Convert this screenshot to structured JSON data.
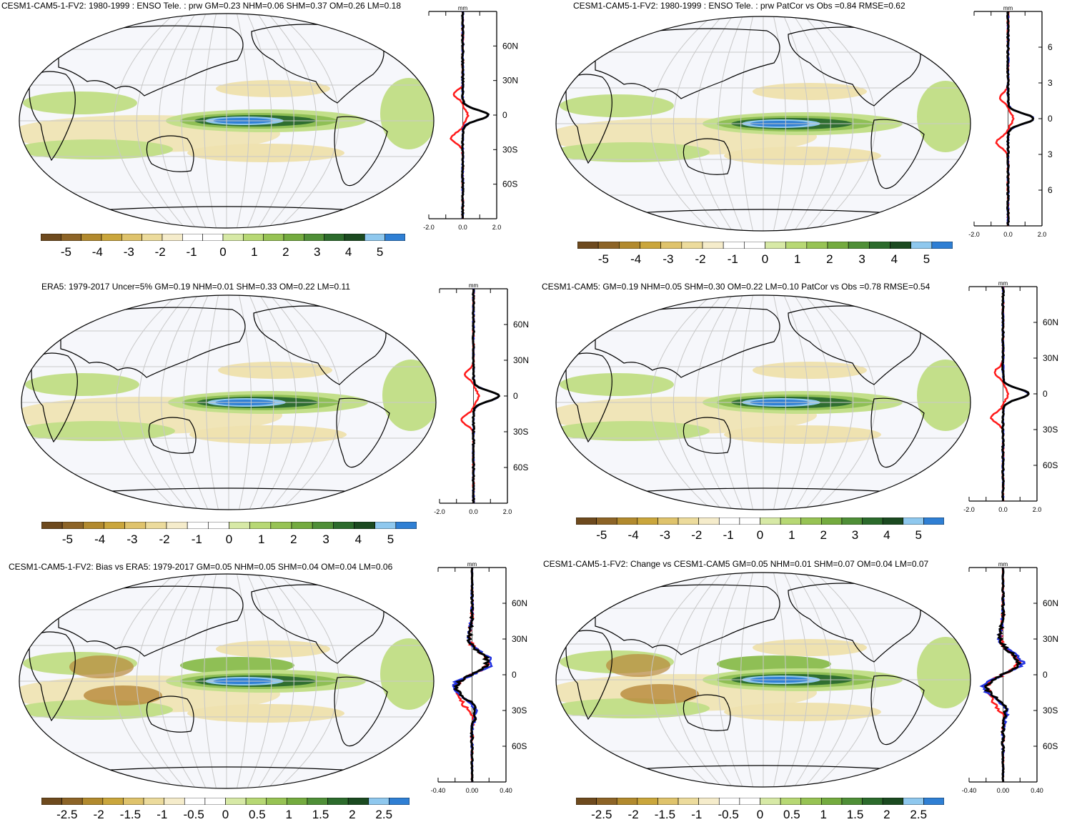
{
  "colors": {
    "ocean": "#f6f7fb",
    "land_outline": "#000000",
    "grid": "#c8c8c8",
    "profile_red": "#ff1a1a",
    "profile_blue": "#1f2fe0",
    "profile_black": "#000000",
    "colorbar": [
      "#6e4a1e",
      "#8d6427",
      "#b28a2e",
      "#caa63c",
      "#dfc36c",
      "#ecdb9c",
      "#f5eccb",
      "#ffffff",
      "#ffffff",
      "#d7e9a6",
      "#b7d874",
      "#97c354",
      "#74ab3f",
      "#4f8f37",
      "#2c6b2c",
      "#1b4a20",
      "#8fc8ee",
      "#2f7fd4"
    ]
  },
  "panels": [
    {
      "id": "top-left",
      "title": "CESM1-CAM5-1-FV2: 1980-1999 : ENSO Tele. : prw GM=0.23 NHM=0.06 SHM=0.37 OM=0.26 LM=0.18",
      "unit": "mm",
      "lat_labels": [
        "60N",
        "30N",
        "0",
        "30S",
        "60S"
      ],
      "x_ticks": [
        "-2.0",
        "0.0",
        "2.0"
      ],
      "colorbar_labels": [
        "-5",
        "-4",
        "-3",
        "-2",
        "-1",
        "0",
        "1",
        "2",
        "3",
        "4",
        "5"
      ]
    },
    {
      "id": "top-right",
      "title": "CESM1-CAM5-1-FV2: 1980-1999 : ENSO Tele. : prw PatCor vs Obs =0.84 RMSE=0.62",
      "unit": "mm",
      "lat_labels": [
        "6",
        "3",
        "0",
        "3",
        "6"
      ],
      "x_ticks": [
        "-2.0",
        "0.0",
        "2.0"
      ],
      "colorbar_labels": [
        "-5",
        "-4",
        "-3",
        "-2",
        "-1",
        "0",
        "1",
        "2",
        "3",
        "4",
        "5"
      ]
    },
    {
      "id": "mid-left",
      "title": "ERA5: 1979-2017 Uncer=5% GM=0.19 NHM=0.01 SHM=0.33 OM=0.22 LM=0.11",
      "unit": "mm",
      "lat_labels": [
        "60N",
        "30N",
        "0",
        "30S",
        "60S"
      ],
      "x_ticks": [
        "-2.0",
        "0.0",
        "2.0"
      ],
      "colorbar_labels": [
        "-5",
        "-4",
        "-3",
        "-2",
        "-1",
        "0",
        "1",
        "2",
        "3",
        "4",
        "5"
      ]
    },
    {
      "id": "mid-right",
      "title": "CESM1-CAM5: GM=0.19 NHM=0.05 SHM=0.30 OM=0.22 LM=0.10 PatCor vs Obs =0.78 RMSE=0.54",
      "unit": "mm",
      "lat_labels": [
        "60N",
        "30N",
        "0",
        "30S",
        "60S"
      ],
      "x_ticks": [
        "-2.0",
        "0.0",
        "2.0"
      ],
      "colorbar_labels": [
        "-5",
        "-4",
        "-3",
        "-2",
        "-1",
        "0",
        "1",
        "2",
        "3",
        "4",
        "5"
      ]
    },
    {
      "id": "bot-left",
      "title": "CESM1-CAM5-1-FV2: Bias vs ERA5: 1979-2017 GM=0.05 NHM=0.05 SHM=0.04 OM=0.04 LM=0.06",
      "unit": "mm",
      "lat_labels": [
        "60N",
        "30N",
        "0",
        "30S",
        "60S"
      ],
      "x_ticks": [
        "-0.40",
        "0.00",
        "0.40"
      ],
      "colorbar_labels": [
        "-2.5",
        "-2",
        "-1.5",
        "-1",
        "-0.5",
        "0",
        "0.5",
        "1",
        "1.5",
        "2",
        "2.5"
      ]
    },
    {
      "id": "bot-right",
      "title": "CESM1-CAM5-1-FV2: Change vs CESM1-CAM5 GM=0.05 NHM=0.01 SHM=0.07 OM=0.04 LM=0.07",
      "unit": "mm",
      "lat_labels": [
        "60N",
        "30N",
        "0",
        "30S",
        "60S"
      ],
      "x_ticks": [
        "-0.40",
        "0.00",
        "0.40"
      ],
      "colorbar_labels": [
        "-2.5",
        "-2",
        "-1.5",
        "-1",
        "-0.5",
        "0",
        "0.5",
        "1",
        "1.5",
        "2",
        "2.5"
      ]
    }
  ]
}
